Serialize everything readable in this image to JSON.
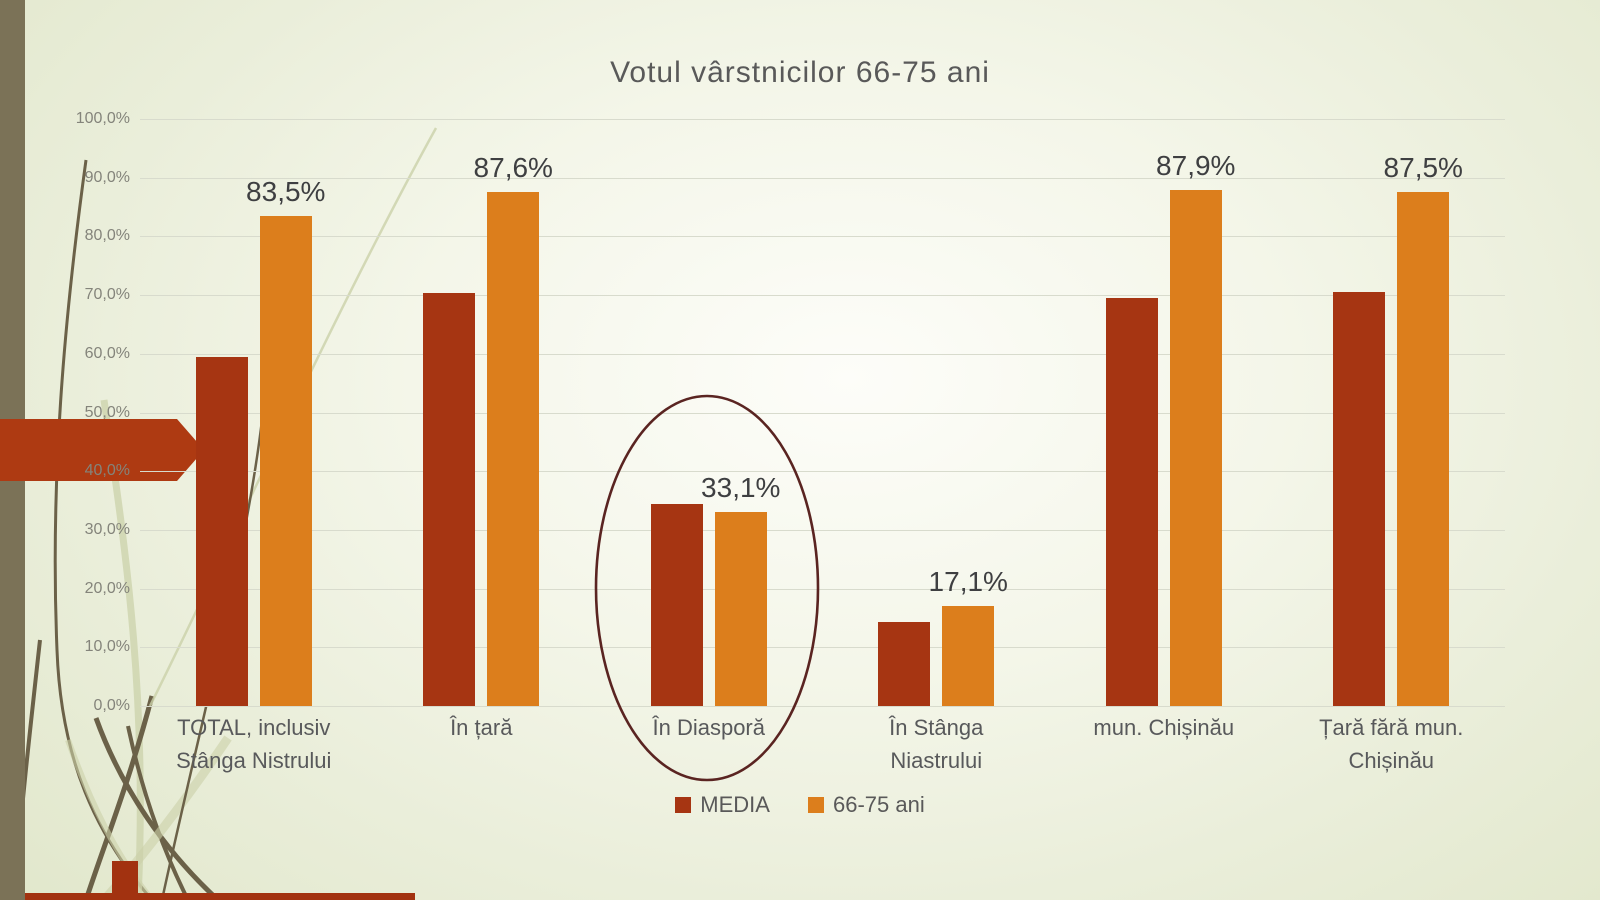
{
  "slide": {
    "title": "Votul vârstnicilor 66-75 ani"
  },
  "colors": {
    "series_media": "#A63512",
    "series_age": "#DC7E1C",
    "arrow": "#AE3A12",
    "ellipse_stroke": "#5A2421",
    "left_band": "#7B7257",
    "bottom_accent": "#A23210",
    "grid": "#D8DBCD",
    "tick_text": "#84847B",
    "category_text": "#58595B",
    "data_label_text": "#3E3F41",
    "title_text": "#595959",
    "legend_text": "#595959",
    "curve_dark": "#6B6148",
    "curve_light": "#CBD1A9"
  },
  "chart_data": {
    "type": "bar",
    "title": "Votul vârstnicilor 66-75 ani",
    "categories": [
      "TOTAL, inclusiv Stânga Nistrului",
      "În țară",
      "În Diasporă",
      "În Stânga Niastrului",
      "mun. Chișinău",
      "Țară fără mun. Chișinău"
    ],
    "series": [
      {
        "name": "MEDIA",
        "color": "#A63512",
        "values": [
          59.4,
          70.3,
          34.4,
          14.3,
          69.5,
          70.6
        ],
        "data_labels": null
      },
      {
        "name": "66-75 ani",
        "color": "#DC7E1C",
        "values": [
          83.5,
          87.6,
          33.1,
          17.1,
          87.9,
          87.5
        ],
        "data_labels": [
          "83,5%",
          "87,6%",
          "33,1%",
          "17,1%",
          "87,9%",
          "87,5%"
        ]
      }
    ],
    "y_axis": {
      "min": 0,
      "max": 100,
      "grid": true,
      "ticks": [
        "100,0%",
        "90,0%",
        "80,0%",
        "70,0%",
        "60,0%",
        "50,0%",
        "40,0%",
        "30,0%",
        "20,0%",
        "10,0%",
        "0,0%"
      ]
    },
    "legend": {
      "position": "bottom",
      "entries": [
        "MEDIA",
        "66-75 ani"
      ]
    },
    "annotations": {
      "highlight_ellipse_category": "În Diasporă",
      "arrow_points_at": "TOTAL, inclusiv Stânga Nistrului"
    }
  }
}
